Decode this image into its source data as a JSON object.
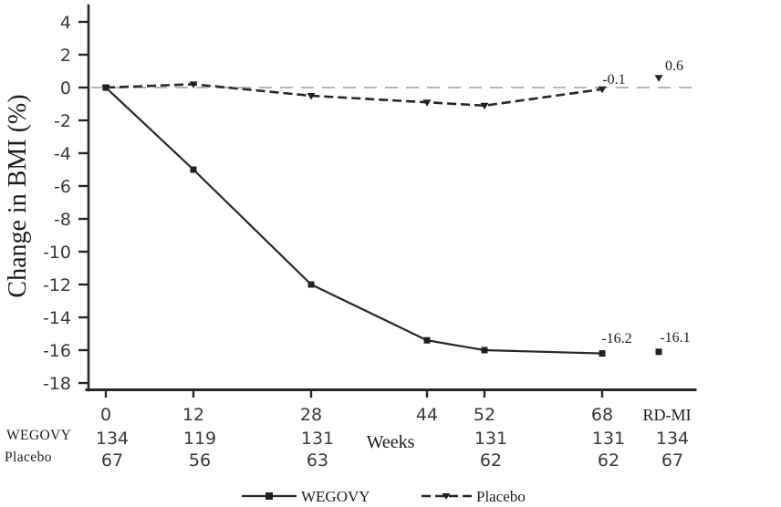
{
  "chart_data": {
    "type": "line",
    "title": "",
    "ylabel": "Change in BMI (%)",
    "xlabel": "Weeks",
    "ylim": [
      -18,
      4
    ],
    "yticks": [
      4,
      2,
      0,
      -2,
      -4,
      -6,
      -8,
      -10,
      -12,
      -14,
      -16,
      -18
    ],
    "x_categories": [
      "0",
      "12",
      "28",
      "44",
      "52",
      "68",
      "RD-MI"
    ],
    "grid": false,
    "zero_reference_line": true,
    "legend_position": "bottom",
    "series": [
      {
        "name": "WEGOVY",
        "marker": "square",
        "line": "solid",
        "x": [
          0,
          12,
          28,
          44,
          52,
          68
        ],
        "values": [
          0,
          -5,
          -12,
          -15.4,
          -16,
          -16.2
        ],
        "rdmi_value": -16.1,
        "end_label": "-16.2",
        "rdmi_label": "-16.1"
      },
      {
        "name": "Placebo",
        "marker": "triangle-down",
        "line": "dashed",
        "x": [
          0,
          12,
          28,
          44,
          52,
          68
        ],
        "values": [
          0,
          0.2,
          -0.5,
          -0.9,
          -1.1,
          -0.1
        ],
        "rdmi_value": 0.6,
        "end_label": "-0.1",
        "rdmi_label": "0.6"
      }
    ],
    "risk_table": {
      "rows": [
        {
          "label": "WEGOVY",
          "counts": [
            "134",
            "119",
            "131",
            "",
            "131",
            "131",
            "134"
          ]
        },
        {
          "label": "Placebo",
          "counts": [
            "67",
            "56",
            "63",
            "",
            "62",
            "62",
            "67"
          ]
        }
      ]
    },
    "colors": {
      "line": "#262626",
      "text": "#1c1c1c",
      "tick_text": "#39393b",
      "zero_line": "#ababab",
      "background": "#ffffff"
    }
  }
}
